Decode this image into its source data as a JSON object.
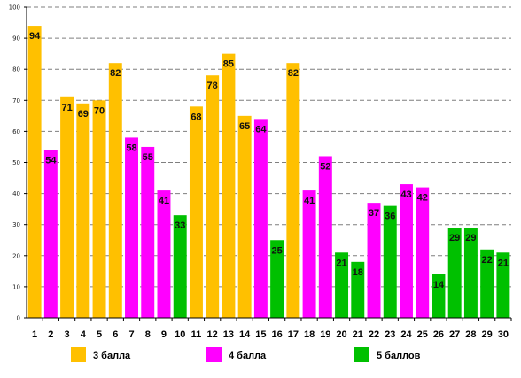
{
  "chart_data": {
    "type": "bar",
    "categories": [
      "1",
      "2",
      "3",
      "4",
      "5",
      "6",
      "7",
      "8",
      "9",
      "10",
      "11",
      "12",
      "13",
      "14",
      "15",
      "16",
      "17",
      "18",
      "19",
      "20",
      "21",
      "22",
      "23",
      "24",
      "25",
      "26",
      "27",
      "28",
      "29",
      "30"
    ],
    "values": [
      94,
      54,
      71,
      69,
      70,
      82,
      58,
      55,
      41,
      33,
      68,
      78,
      85,
      65,
      64,
      25,
      82,
      41,
      52,
      21,
      18,
      37,
      36,
      43,
      42,
      14,
      29,
      29,
      22,
      21
    ],
    "groups": [
      0,
      1,
      0,
      0,
      0,
      0,
      1,
      1,
      1,
      2,
      0,
      0,
      0,
      0,
      1,
      2,
      0,
      1,
      1,
      2,
      2,
      1,
      2,
      1,
      1,
      2,
      2,
      2,
      2,
      2
    ],
    "series": [
      {
        "name": "3 балла",
        "color": "#FFC000"
      },
      {
        "name": "4 балла",
        "color": "#FF00FF"
      },
      {
        "name": "5 баллов",
        "color": "#00C000"
      }
    ],
    "yticks": [
      0,
      10,
      20,
      30,
      40,
      50,
      60,
      70,
      80,
      90,
      100
    ],
    "ylim": [
      0,
      100
    ],
    "grid": true,
    "legend_position": "bottom"
  }
}
